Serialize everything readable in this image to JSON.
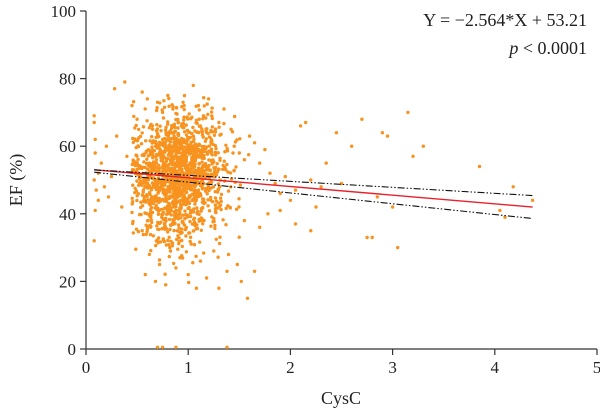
{
  "chart_data": {
    "type": "scatter",
    "xlabel": "CysC",
    "ylabel": "EF (%)",
    "xlim": [
      0,
      5
    ],
    "ylim": [
      0,
      100
    ],
    "xticks": [
      "0",
      "1",
      "2",
      "3",
      "4",
      "5"
    ],
    "yticks": [
      "0",
      "20",
      "40",
      "60",
      "80",
      "100"
    ],
    "grid": false,
    "colors": {
      "points": "#f7931e",
      "fit_line": "#e8212b",
      "ci_lines": "#111111",
      "axis": "#333333"
    },
    "annotation": {
      "equation": "Y = −2.564*X + 53.21",
      "p_symbol": "p",
      "p_value": " < 0.0001"
    },
    "regression": {
      "slope": -2.564,
      "intercept": 53.21,
      "x_range": [
        0.08,
        4.37
      ]
    },
    "confidence_band": {
      "upper": [
        [
          0.08,
          53.0
        ],
        [
          4.37,
          45.4
        ]
      ],
      "lower": [
        [
          0.08,
          52.3
        ],
        [
          4.37,
          38.6
        ]
      ]
    },
    "series": [
      {
        "points": [
          [
            0.08,
            69
          ],
          [
            0.08,
            67
          ],
          [
            0.09,
            62
          ],
          [
            0.09,
            58
          ],
          [
            0.08,
            50
          ],
          [
            0.1,
            47
          ],
          [
            0.09,
            41
          ],
          [
            0.08,
            32
          ],
          [
            0.12,
            52
          ],
          [
            0.12,
            44
          ],
          [
            0.15,
            55
          ],
          [
            0.18,
            48
          ],
          [
            0.2,
            60
          ],
          [
            0.22,
            45
          ],
          [
            0.25,
            51
          ],
          [
            0.28,
            77
          ],
          [
            0.3,
            63
          ],
          [
            0.35,
            42
          ],
          [
            0.38,
            79
          ],
          [
            0.4,
            57
          ],
          [
            0.45,
            72
          ],
          [
            0.5,
            68
          ],
          [
            0.55,
            76
          ],
          [
            0.6,
            74
          ],
          [
            0.65,
            66
          ],
          [
            0.7,
            73
          ],
          [
            0.75,
            70
          ],
          [
            0.8,
            75
          ],
          [
            0.85,
            71
          ],
          [
            0.95,
            73
          ],
          [
            1.05,
            78
          ],
          [
            1.1,
            72
          ],
          [
            1.15,
            69
          ],
          [
            1.2,
            74
          ],
          [
            1.3,
            67
          ],
          [
            1.35,
            71
          ],
          [
            1.42,
            65
          ],
          [
            1.45,
            60
          ],
          [
            1.5,
            58
          ],
          [
            1.55,
            56
          ],
          [
            1.6,
            63
          ],
          [
            1.65,
            61
          ],
          [
            1.7,
            55
          ],
          [
            1.75,
            59
          ],
          [
            1.8,
            52
          ],
          [
            1.85,
            49
          ],
          [
            1.9,
            46
          ],
          [
            1.95,
            51
          ],
          [
            2.0,
            44
          ],
          [
            2.05,
            47
          ],
          [
            2.1,
            66
          ],
          [
            2.15,
            67
          ],
          [
            2.2,
            50
          ],
          [
            2.25,
            42
          ],
          [
            2.3,
            48
          ],
          [
            2.35,
            55
          ],
          [
            2.45,
            64
          ],
          [
            2.5,
            49
          ],
          [
            2.6,
            60
          ],
          [
            2.7,
            68
          ],
          [
            2.75,
            33
          ],
          [
            2.8,
            33
          ],
          [
            2.85,
            45
          ],
          [
            2.9,
            64
          ],
          [
            2.95,
            63
          ],
          [
            3.0,
            42
          ],
          [
            3.05,
            30
          ],
          [
            3.15,
            70
          ],
          [
            3.2,
            57
          ],
          [
            3.3,
            60
          ],
          [
            3.85,
            54
          ],
          [
            4.05,
            41
          ],
          [
            4.1,
            39
          ],
          [
            4.18,
            48
          ],
          [
            4.37,
            44
          ],
          [
            0.55,
            35
          ],
          [
            0.58,
            22
          ],
          [
            0.62,
            28
          ],
          [
            0.68,
            20
          ],
          [
            0.72,
            25
          ],
          [
            0.78,
            19
          ],
          [
            0.82,
            30
          ],
          [
            0.88,
            24
          ],
          [
            0.92,
            27
          ],
          [
            1.0,
            22
          ],
          [
            1.08,
            18
          ],
          [
            1.12,
            26
          ],
          [
            1.18,
            21
          ],
          [
            1.25,
            29
          ],
          [
            1.3,
            18
          ],
          [
            1.38,
            23
          ],
          [
            1.48,
            25
          ],
          [
            1.52,
            20
          ],
          [
            1.58,
            15
          ],
          [
            1.65,
            23
          ],
          [
            0.7,
            0.5
          ],
          [
            0.75,
            0.5
          ],
          [
            0.88,
            0.5
          ],
          [
            1.38,
            0.5
          ],
          [
            1.55,
            38
          ],
          [
            1.7,
            36
          ],
          [
            1.78,
            40
          ],
          [
            1.9,
            41
          ],
          [
            2.05,
            37
          ],
          [
            2.2,
            35
          ]
        ]
      }
    ],
    "cluster": {
      "x_mean": 0.9,
      "x_sd": 0.22,
      "y_mean": 51,
      "y_sd": 9,
      "count": 1500,
      "x_min": 0.45,
      "x_max": 1.6
    }
  }
}
